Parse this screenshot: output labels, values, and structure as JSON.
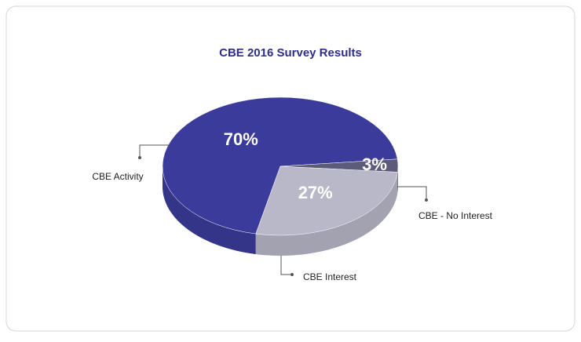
{
  "chart_data": {
    "type": "pie",
    "title": "CBE 2016 Survey Results",
    "categories": [
      "CBE Activity",
      "CBE Interest",
      "CBE - No Interest"
    ],
    "values": [
      70,
      27,
      3
    ],
    "value_labels": [
      "70%",
      "27%",
      "3%"
    ],
    "colors": [
      "#3b3b9c",
      "#b9b8c9",
      "#5c5b7a"
    ]
  }
}
